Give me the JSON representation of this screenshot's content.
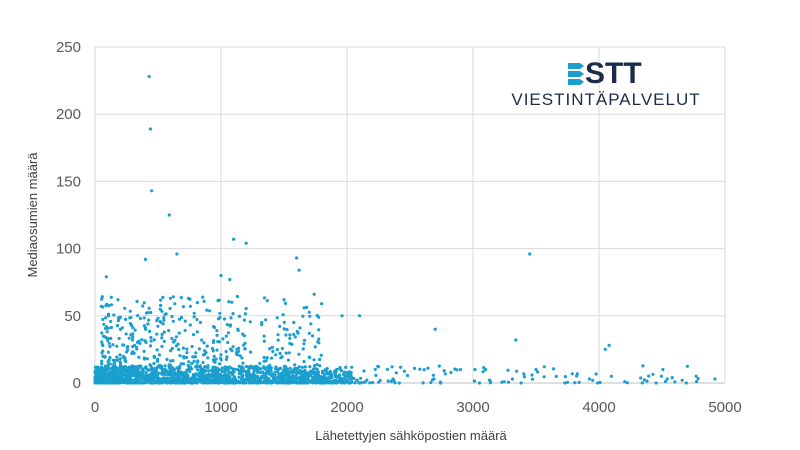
{
  "chart_data": {
    "type": "scatter",
    "title": "",
    "xlabel": "Lähetettyjen sähköpostien määrä",
    "ylabel": "Mediaosumien määrä",
    "xlim": [
      0,
      5000
    ],
    "ylim": [
      0,
      250
    ],
    "x_ticks": [
      "0",
      "1000",
      "2000",
      "3000",
      "4000",
      "5000"
    ],
    "y_ticks": [
      "0",
      "50",
      "100",
      "150",
      "200",
      "250"
    ],
    "grid": true,
    "point_color": "#1a9fcf",
    "highlighted_points": [
      {
        "x": 430,
        "y": 228
      },
      {
        "x": 440,
        "y": 189
      },
      {
        "x": 450,
        "y": 143
      },
      {
        "x": 590,
        "y": 125
      },
      {
        "x": 1100,
        "y": 107
      },
      {
        "x": 1200,
        "y": 104
      },
      {
        "x": 650,
        "y": 96
      },
      {
        "x": 3450,
        "y": 96
      },
      {
        "x": 1600,
        "y": 93
      },
      {
        "x": 400,
        "y": 92
      },
      {
        "x": 1620,
        "y": 84
      },
      {
        "x": 1000,
        "y": 80
      },
      {
        "x": 90,
        "y": 79
      },
      {
        "x": 1070,
        "y": 77
      },
      {
        "x": 1740,
        "y": 66
      },
      {
        "x": 1500,
        "y": 62
      },
      {
        "x": 1960,
        "y": 50
      },
      {
        "x": 2100,
        "y": 50
      },
      {
        "x": 2700,
        "y": 40
      },
      {
        "x": 3340,
        "y": 32
      },
      {
        "x": 4080,
        "y": 28
      },
      {
        "x": 4050,
        "y": 25
      },
      {
        "x": 2900,
        "y": 10
      },
      {
        "x": 3100,
        "y": 10
      },
      {
        "x": 3500,
        "y": 10
      },
      {
        "x": 4660,
        "y": 2
      },
      {
        "x": 4920,
        "y": 3
      }
    ],
    "dense_clusters": [
      {
        "x_range": [
          0,
          2050
        ],
        "y_range": [
          0,
          12
        ],
        "count": 1500,
        "note": "dense band near zero"
      },
      {
        "x_range": [
          50,
          1800
        ],
        "y_range": [
          12,
          65
        ],
        "count": 420,
        "note": "scattered mid values"
      },
      {
        "x_range": [
          2050,
          4950
        ],
        "y_range": [
          0,
          14
        ],
        "count": 110,
        "note": "sparse tail"
      }
    ]
  },
  "logo": {
    "wordmark": "STT",
    "tagline": "VIESTINTÄPALVELUT",
    "color": "#1c2b4a",
    "accent": "#1a9fcf"
  }
}
